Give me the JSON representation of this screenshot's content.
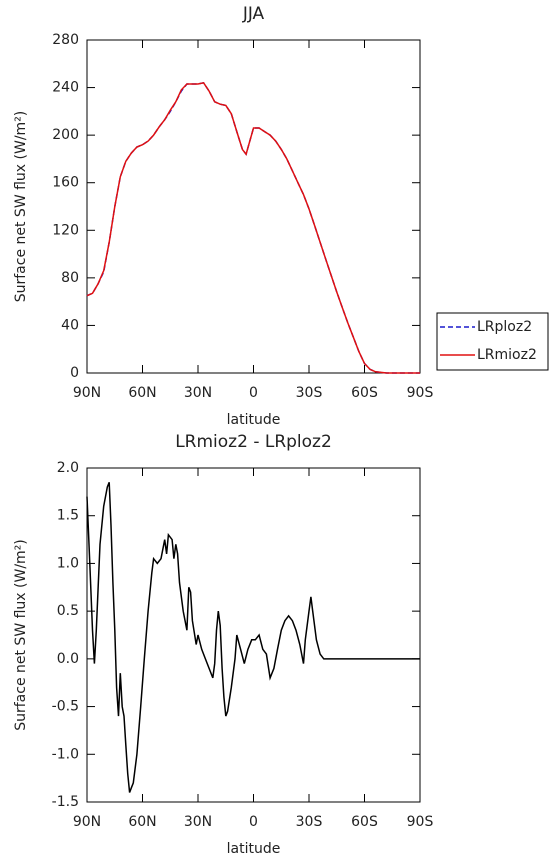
{
  "chart_data": [
    {
      "type": "line",
      "title": "JJA",
      "xlabel": "latitude",
      "ylabel": "Surface net SW flux (W/m²)",
      "x": [
        90,
        87,
        84,
        81,
        78,
        75,
        72,
        69,
        66,
        63,
        60,
        57,
        54,
        51,
        48,
        45,
        42,
        39,
        36,
        33,
        30,
        27,
        24,
        21,
        18,
        15,
        12,
        9,
        6,
        4,
        2,
        0,
        -3,
        -6,
        -9,
        -12,
        -15,
        -18,
        -21,
        -24,
        -27,
        -30,
        -33,
        -36,
        -39,
        -42,
        -45,
        -48,
        -51,
        -54,
        -57,
        -60,
        -63,
        -66,
        -69,
        -72,
        -78,
        -84,
        -90
      ],
      "series": [
        {
          "name": "LRploz2",
          "color": "#1a1acc",
          "dash": true,
          "values": [
            65,
            67,
            75,
            85,
            110,
            140,
            165,
            178,
            185,
            190,
            192,
            195,
            200,
            207,
            213,
            220,
            228,
            237,
            243,
            243,
            243,
            244,
            237,
            228,
            226,
            225,
            218,
            203,
            188,
            184,
            195,
            206,
            206,
            203,
            200,
            195,
            188,
            180,
            170,
            160,
            150,
            138,
            124,
            110,
            96,
            82,
            68,
            55,
            42,
            30,
            18,
            8,
            3,
            1,
            0.5,
            0,
            0,
            0,
            0
          ]
        },
        {
          "name": "LRmioz2",
          "color": "#e01010",
          "dash": false,
          "values": [
            65,
            67,
            75,
            86,
            110,
            140,
            165,
            178,
            185,
            190,
            192,
            195,
            200,
            207,
            213,
            221,
            228,
            238,
            243,
            243,
            243,
            244,
            237,
            228,
            226,
            225,
            218,
            203,
            188,
            184,
            195,
            206,
            206,
            203,
            200,
            195,
            188,
            180,
            170,
            160,
            150,
            138,
            124,
            110,
            96,
            82,
            68,
            55,
            42,
            30,
            18,
            8,
            3,
            1,
            0.5,
            0,
            0,
            0,
            0
          ]
        }
      ],
      "xlim": [
        90,
        -90
      ],
      "xticks": [
        {
          "value": 90,
          "label": "90N"
        },
        {
          "value": 60,
          "label": "60N"
        },
        {
          "value": 30,
          "label": "30N"
        },
        0,
        {
          "value": -30,
          "label": "30S"
        },
        {
          "value": -60,
          "label": "60S"
        },
        {
          "value": -90,
          "label": "90S"
        }
      ],
      "ylim": [
        0,
        280
      ],
      "yticks": [
        0,
        40,
        80,
        120,
        160,
        200,
        240,
        280
      ],
      "legend": "outside right"
    },
    {
      "type": "line",
      "title": "LRmioz2 - LRploz2",
      "xlabel": "latitude",
      "ylabel": "Surface net SW flux (W/m²)",
      "x": [
        90,
        88.5,
        87,
        86,
        85,
        83,
        81,
        79,
        78,
        77,
        76,
        75,
        74,
        73,
        72,
        71,
        70,
        69,
        68,
        67,
        66,
        65,
        63,
        61,
        59,
        57,
        55,
        54,
        52,
        50,
        48,
        47,
        46,
        44,
        43,
        42,
        41,
        40,
        38,
        36,
        35,
        34,
        33,
        31,
        30,
        28,
        26,
        24,
        22,
        21,
        20,
        19,
        18,
        17,
        16,
        15,
        14,
        12,
        10,
        9,
        7,
        5,
        3,
        1,
        -1,
        -3,
        -5,
        -7,
        -9,
        -11,
        -13,
        -15,
        -17,
        -19,
        -21,
        -23,
        -25,
        -27,
        -28,
        -30,
        -31,
        -32,
        -34,
        -36,
        -38,
        -42,
        -90
      ],
      "series": [
        {
          "color": "#000000",
          "dash": false,
          "values": [
            1.7,
            1.0,
            0.3,
            -0.05,
            0.3,
            1.2,
            1.6,
            1.8,
            1.85,
            1.4,
            0.8,
            0.3,
            -0.3,
            -0.6,
            -0.15,
            -0.5,
            -0.6,
            -0.9,
            -1.2,
            -1.4,
            -1.35,
            -1.3,
            -1.0,
            -0.5,
            0.0,
            0.5,
            0.9,
            1.05,
            1.0,
            1.05,
            1.25,
            1.1,
            1.3,
            1.25,
            1.05,
            1.2,
            1.1,
            0.8,
            0.5,
            0.3,
            0.75,
            0.7,
            0.4,
            0.15,
            0.25,
            0.1,
            0.0,
            -0.1,
            -0.2,
            -0.05,
            0.3,
            0.5,
            0.35,
            -0.1,
            -0.4,
            -0.6,
            -0.55,
            -0.3,
            0.0,
            0.25,
            0.1,
            -0.05,
            0.1,
            0.2,
            0.2,
            0.25,
            0.1,
            0.05,
            -0.2,
            -0.1,
            0.1,
            0.3,
            0.4,
            0.45,
            0.4,
            0.3,
            0.15,
            -0.05,
            0.2,
            0.5,
            0.65,
            0.5,
            0.2,
            0.05,
            0.0,
            0.0,
            0.0
          ]
        }
      ],
      "xlim": [
        90,
        -90
      ],
      "xticks": [
        {
          "value": 90,
          "label": "90N"
        },
        {
          "value": 60,
          "label": "60N"
        },
        {
          "value": 30,
          "label": "30N"
        },
        0,
        {
          "value": -30,
          "label": "30S"
        },
        {
          "value": -60,
          "label": "60S"
        },
        {
          "value": -90,
          "label": "90S"
        }
      ],
      "ylim": [
        -1.5,
        2.0
      ],
      "yticks": [
        -1.5,
        {
          "value": -1,
          "label": "-1.0"
        },
        -0.5,
        {
          "value": 0,
          "label": "0.0"
        },
        0.5,
        {
          "value": 1,
          "label": "1.0"
        },
        1.5,
        {
          "value": 2,
          "label": "2.0"
        }
      ]
    }
  ]
}
